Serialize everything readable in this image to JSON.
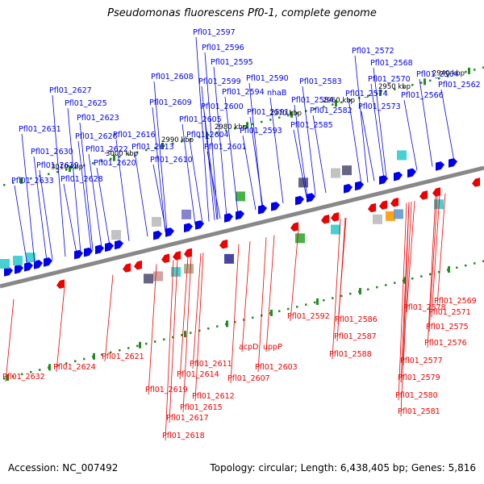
{
  "title": "Pseudomonas fluorescens Pf0-1, complete genome",
  "footer": {
    "accession": "Accession: NC_007492",
    "summary": "Topology: circular; Length: 6,438,405 bp; Genes: 5,816"
  },
  "colors": {
    "forward": "#0000ee",
    "reverse": "#ee0000",
    "axis": "#888888",
    "ticks": "#228b22"
  },
  "scale_ticks": [
    "3010 kbp",
    "3000 kbp",
    "2990 kbp",
    "2980 kbp",
    "2970 kbp",
    "2960 kbp",
    "2950 kbp",
    "2940 kbp"
  ],
  "forward_labels": [
    "Pfl01_2633",
    "Pfl01_2631",
    "Pfl01_2630",
    "Pfl01_2629",
    "Pfl01_2628",
    "Pfl01_2627",
    "Pfl01_2625",
    "Pfl01_2626",
    "Pfl01_2623",
    "Pfl01_2622",
    "Pfl01_2620",
    "Pfl01_2616",
    "Pfl01_2613",
    "Pfl01_2610",
    "Pfl01_2609",
    "Pfl01_2608",
    "Pfl01_2605",
    "Pfl01_2604",
    "Pfl01_2601",
    "Pfl01_2600",
    "Pfl01_2599",
    "Pfl01_2597",
    "Pfl01_2596",
    "Pfl01_2595",
    "Pfl01_2594",
    "Pfl01_2593",
    "Pfl01_2591",
    "Pfl01_2590",
    "nhaB",
    "Pfl01_2585",
    "Pfl01_2584",
    "Pfl01_2583",
    "Pfl01_2582",
    "Pfl01_2574",
    "Pfl01_2573",
    "Pfl01_2572",
    "Pfl01_2570",
    "Pfl01_2568",
    "Pfl01_2566",
    "Pfl01_2564",
    "Pfl01_2562"
  ],
  "reverse_labels": [
    "Pfl01_2632",
    "Pfl01_2624",
    "Pfl01_2621",
    "Pfl01_2619",
    "Pfl01_2617",
    "Pfl01_2618",
    "Pfl01_2615",
    "Pfl01_2614",
    "Pfl01_2612",
    "Pfl01_2611",
    "Pfl01_2607",
    "acpD",
    "Pfl01_2603",
    "uppP",
    "Pfl01_2592",
    "Pfl01_2586",
    "Pfl01_2587",
    "Pfl01_2588",
    "Pfl01_2578",
    "Pfl01_2575",
    "Pfl01_2576",
    "Pfl01_2577",
    "Pfl01_2579",
    "Pfl01_2580",
    "Pfl01_2581",
    "Pfl01_2569",
    "Pfl01_2571"
  ]
}
